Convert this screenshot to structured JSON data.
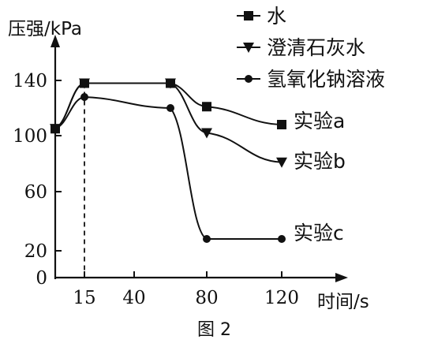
{
  "chart_data": {
    "type": "line",
    "ylabel": "压强/kPa",
    "xlabel": "时间/s",
    "caption": "图 2",
    "xlim": [
      0,
      130
    ],
    "ylim": [
      0,
      180
    ],
    "x_ticks": [
      15,
      40,
      80,
      120
    ],
    "x_tick_labels": [
      "15",
      "40",
      "80",
      "120"
    ],
    "y_ticks": [
      0,
      20,
      60,
      100,
      140
    ],
    "y_tick_labels": [
      "0",
      "20",
      "60",
      "100",
      "140"
    ],
    "reference_line_x": 15,
    "legend_position": "top-right",
    "series": [
      {
        "name": "水",
        "marker": "square",
        "end_label": "实验a",
        "x": [
          0,
          15,
          60,
          80,
          120
        ],
        "y": [
          105,
          138,
          138,
          121,
          108
        ]
      },
      {
        "name": "澄清石灰水",
        "marker": "triangle-down",
        "end_label": "实验b",
        "x": [
          0,
          15,
          60,
          80,
          120
        ],
        "y": [
          105,
          138,
          138,
          102,
          81
        ]
      },
      {
        "name": "氢氧化钠溶液",
        "marker": "circle",
        "end_label": "实验c",
        "x": [
          0,
          15,
          60,
          80,
          120
        ],
        "y": [
          105,
          128,
          120,
          28,
          28
        ]
      }
    ]
  }
}
